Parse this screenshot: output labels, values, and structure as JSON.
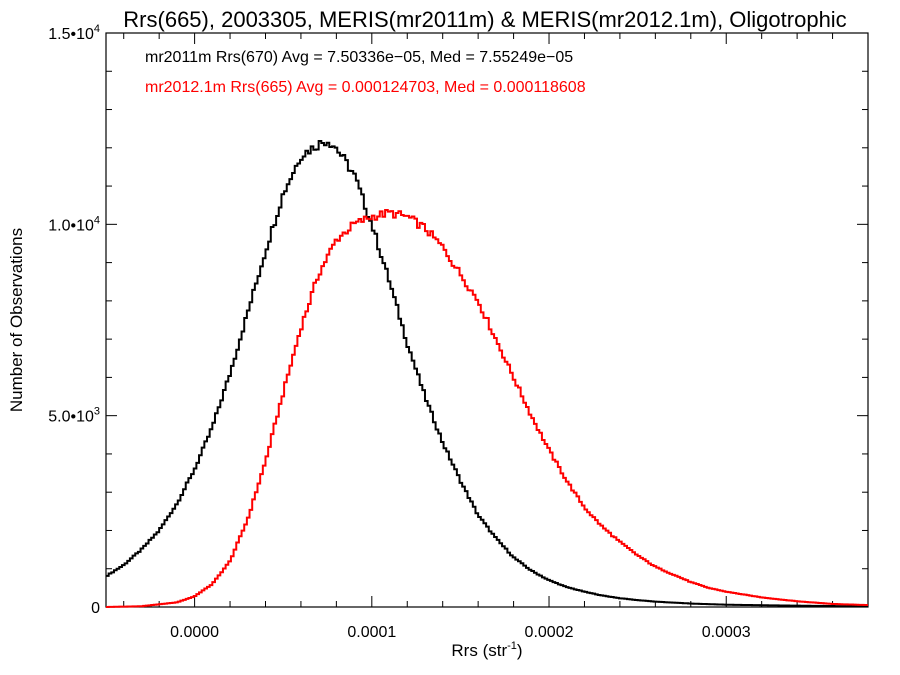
{
  "chart_data": {
    "type": "line",
    "title": "Rrs(665), 2003305, MERIS(mr2011m) & MERIS(mr2012.1m), Oligotrophic",
    "xlabel": "Rrs (str",
    "xlabel_sup": "-1",
    "xlabel_suffix": ")",
    "ylabel": "Number of Observations",
    "xlim": [
      -5e-05,
      0.00038
    ],
    "ylim": [
      0,
      15000
    ],
    "x_ticks": [
      {
        "value": 0.0,
        "label": "0.0000"
      },
      {
        "value": 0.0001,
        "label": "0.0001"
      },
      {
        "value": 0.0002,
        "label": "0.0002"
      },
      {
        "value": 0.0003,
        "label": "0.0003"
      }
    ],
    "y_ticks": [
      {
        "value": 0,
        "label": "0",
        "sup": ""
      },
      {
        "value": 5000,
        "label": "5.0•10",
        "sup": "3"
      },
      {
        "value": 10000,
        "label": "1.0•10",
        "sup": "4"
      },
      {
        "value": 15000,
        "label": "1.5•10",
        "sup": "4"
      }
    ],
    "grid": false,
    "bin_width": 1.5e-06,
    "series": [
      {
        "name": "mr2011m",
        "color": "#000000",
        "annotation": "mr2011m Rrs(670) Avg = 7.50336e−05, Med = 7.55249e−05",
        "x": [
          -5e-05,
          -4e-05,
          -3e-05,
          -2e-05,
          -1e-05,
          0.0,
          1e-05,
          2e-05,
          3e-05,
          4e-05,
          5e-05,
          6e-05,
          7e-05,
          7.5e-05,
          8e-05,
          9e-05,
          0.0001,
          0.00011,
          0.00012,
          0.00013,
          0.00014,
          0.00015,
          0.00016,
          0.00017,
          0.00018,
          0.00019,
          0.0002,
          0.00021,
          0.00022,
          0.00023,
          0.00024,
          0.00025,
          0.00026,
          0.00028,
          0.0003,
          0.00033,
          0.00036,
          0.00038
        ],
        "y": [
          800,
          1100,
          1500,
          2000,
          2700,
          3600,
          4700,
          6100,
          7700,
          9300,
          10800,
          11800,
          12100,
          12200,
          12000,
          11300,
          10000,
          8500,
          6900,
          5500,
          4300,
          3300,
          2400,
          1800,
          1300,
          950,
          700,
          520,
          400,
          300,
          230,
          180,
          140,
          90,
          60,
          40,
          25,
          15
        ]
      },
      {
        "name": "mr2012.1m",
        "color": "#ff0000",
        "annotation": "mr2012.1m Rrs(665) Avg = 0.000124703, Med = 0.000118608",
        "x": [
          -5e-05,
          -3e-05,
          -1e-05,
          0.0,
          1e-05,
          2e-05,
          3e-05,
          4e-05,
          5e-05,
          6e-05,
          7e-05,
          8e-05,
          9e-05,
          0.0001,
          0.00011,
          0.00012,
          0.00013,
          0.00014,
          0.00015,
          0.00016,
          0.00017,
          0.00018,
          0.00019,
          0.0002,
          0.00021,
          0.00022,
          0.00023,
          0.00024,
          0.00025,
          0.00026,
          0.00027,
          0.00028,
          0.00029,
          0.0003,
          0.00032,
          0.00034,
          0.00036,
          0.00038
        ],
        "y": [
          0,
          20,
          120,
          280,
          600,
          1200,
          2300,
          3800,
          5600,
          7300,
          8700,
          9600,
          10000,
          10200,
          10300,
          10200,
          9900,
          9400,
          8700,
          8000,
          7000,
          6000,
          5000,
          4100,
          3300,
          2600,
          2100,
          1700,
          1350,
          1050,
          850,
          650,
          500,
          400,
          250,
          150,
          80,
          50
        ]
      }
    ]
  }
}
